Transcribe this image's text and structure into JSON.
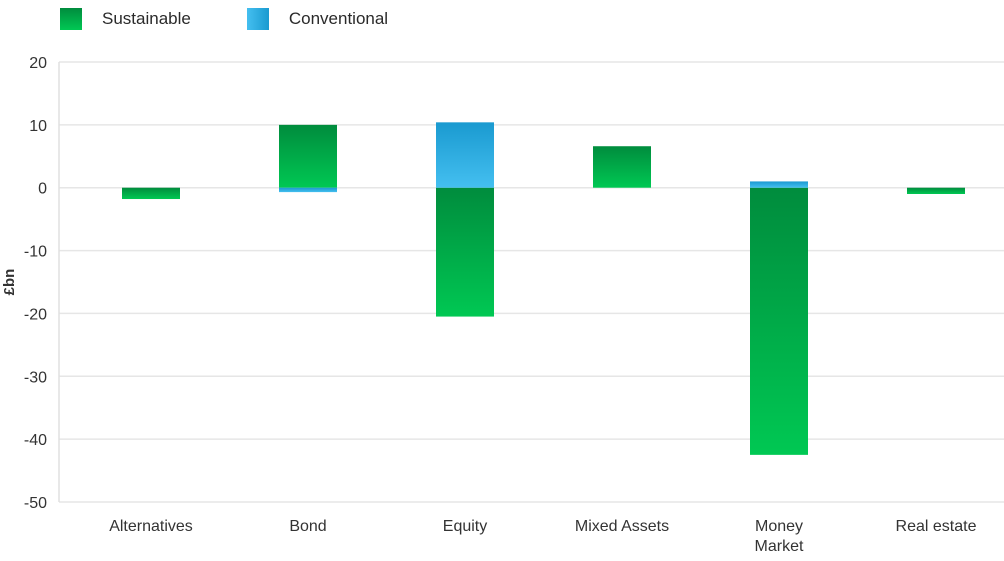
{
  "legend": {
    "items": [
      {
        "label": "Sustainable",
        "color_top": "#008c3d",
        "color_bottom": "#00c853"
      },
      {
        "label": "Conventional",
        "color_top": "#1a9ad0",
        "color_bottom": "#44bff0"
      }
    ]
  },
  "chart_data": {
    "type": "bar",
    "stacked": true,
    "categories": [
      "Alternatives",
      "Bond",
      "Equity",
      "Mixed Assets",
      "Money Market",
      "Real estate"
    ],
    "category_lines": [
      [
        "Alternatives"
      ],
      [
        "Bond"
      ],
      [
        "Equity"
      ],
      [
        "Mixed Assets"
      ],
      [
        "Money",
        "Market"
      ],
      [
        "Real estate"
      ]
    ],
    "series": [
      {
        "name": "Sustainable",
        "values": [
          -1.8,
          10.0,
          -20.5,
          6.6,
          -42.5,
          -1.0
        ]
      },
      {
        "name": "Conventional",
        "values": [
          0,
          -0.7,
          10.4,
          0,
          1.0,
          0
        ]
      }
    ],
    "ylabel": "£bn",
    "ylim": [
      -50,
      20
    ],
    "yticks": [
      20,
      10,
      0,
      -10,
      -20,
      -30,
      -40,
      -50
    ],
    "grid": true,
    "legend_position": "top-left"
  }
}
